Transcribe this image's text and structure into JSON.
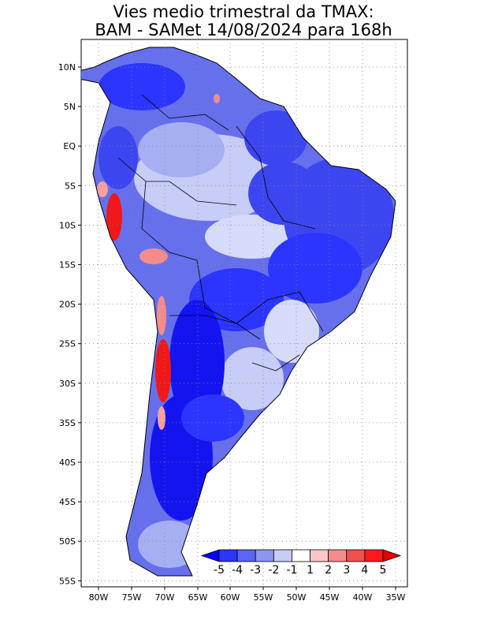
{
  "title": {
    "line1": "Vies medio trimestral da TMAX:",
    "line2": "BAM - SAMet 14/08/2024  para 168h"
  },
  "axes": {
    "lat_labels": [
      "10N",
      "5N",
      "EQ",
      "5S",
      "10S",
      "15S",
      "20S",
      "25S",
      "30S",
      "35S",
      "40S",
      "45S",
      "50S",
      "55S"
    ],
    "lon_labels": [
      "80W",
      "75W",
      "70W",
      "65W",
      "60W",
      "55W",
      "50W",
      "45W",
      "40W",
      "35W"
    ],
    "lat_range_deg": [
      -56,
      12.5
    ],
    "lon_range_deg": [
      -83,
      -34
    ],
    "grid": true
  },
  "colorbar": {
    "labels": [
      "-5",
      "-4",
      "-3",
      "-2",
      "-1",
      "1",
      "2",
      "3",
      "4",
      "5"
    ],
    "colors": [
      "#0000ff",
      "#2b35ff",
      "#5a64f5",
      "#8c95f0",
      "#c7cdf7",
      "#ffffff",
      "#ffc6c6",
      "#f58c8c",
      "#f05050",
      "#ff1a1a",
      "#e00000"
    ]
  },
  "map_colors": {
    "deep_blue": "#1414f0",
    "blue": "#3c46f0",
    "mid_blue": "#6670ec",
    "light_blue": "#a6aff2",
    "pale_blue": "#d6dbf9",
    "red": "#f01818",
    "pink": "#f7a0a0"
  }
}
